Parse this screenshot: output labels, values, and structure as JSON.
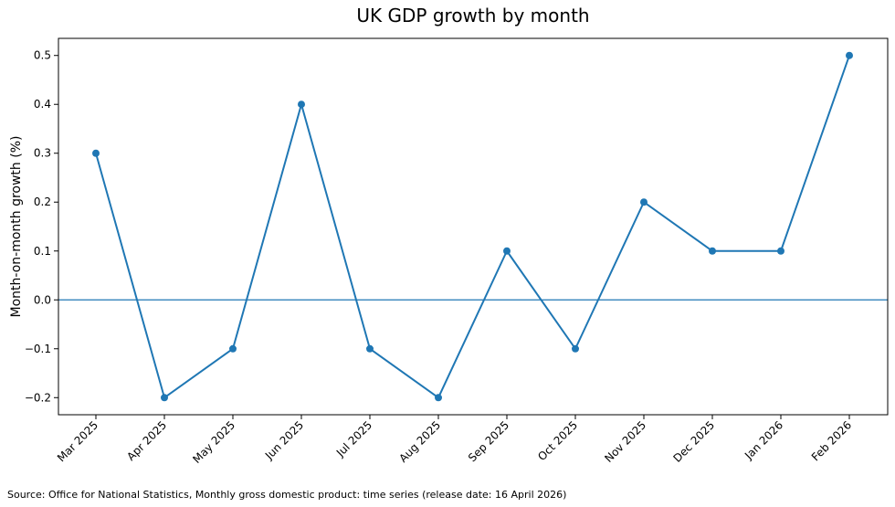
{
  "chart_data": {
    "type": "line",
    "title": "UK GDP growth by month",
    "xlabel": "",
    "ylabel": "Month-on-month growth (%)",
    "categories": [
      "Mar 2025",
      "Apr 2025",
      "May 2025",
      "Jun 2025",
      "Jul 2025",
      "Aug 2025",
      "Sep 2025",
      "Oct 2025",
      "Nov 2025",
      "Dec 2025",
      "Jan 2026",
      "Feb 2026"
    ],
    "series": [
      {
        "name": "Month-on-month growth",
        "values": [
          0.3,
          -0.2,
          -0.1,
          0.4,
          -0.1,
          -0.2,
          0.1,
          -0.1,
          0.2,
          0.1,
          0.1,
          0.5
        ]
      }
    ],
    "ylim": [
      -0.235,
      0.535
    ],
    "yticks": [
      -0.2,
      -0.1,
      0.0,
      0.1,
      0.2,
      0.3,
      0.4,
      0.5
    ],
    "ytick_labels": [
      "−0.2",
      "−0.1",
      "0.0",
      "0.1",
      "0.2",
      "0.3",
      "0.4",
      "0.5"
    ],
    "reference_line": 0,
    "grid": false,
    "legend": "none",
    "line_color": "#1f77b4"
  },
  "source_note": "Source: Office for National Statistics, Monthly gross domestic product: time series (release date: 16 April 2026)"
}
